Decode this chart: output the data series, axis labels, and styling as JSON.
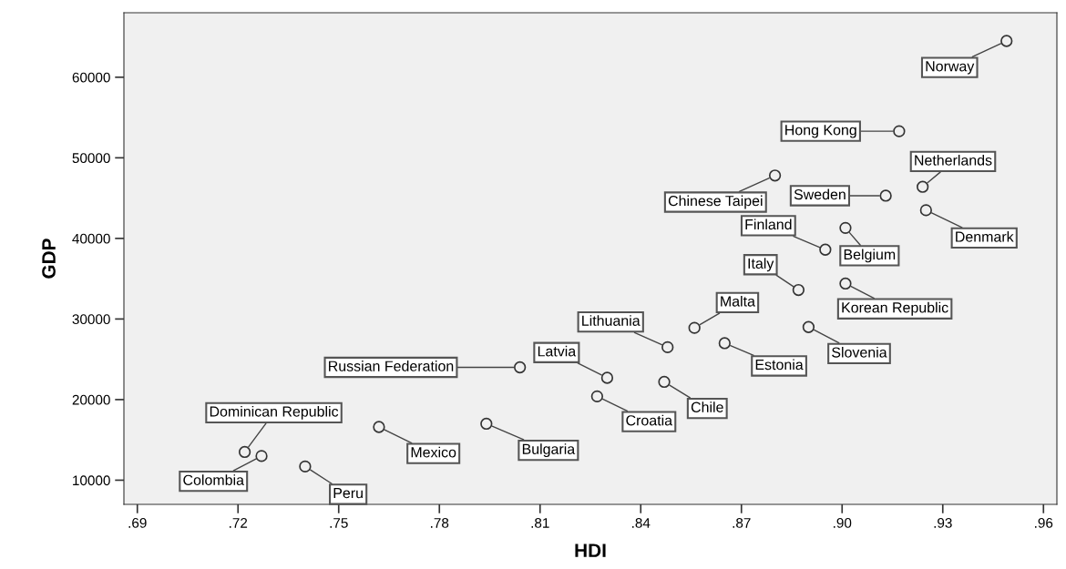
{
  "chart_data": {
    "type": "scatter",
    "xlabel": "HDI",
    "ylabel": "GDP",
    "marker": "circle",
    "grid": false,
    "xlim": [
      0.686,
      0.964
    ],
    "ylim": [
      7000,
      68000
    ],
    "xticks": [
      {
        "value": 0.69,
        "label": ".69"
      },
      {
        "value": 0.72,
        "label": ".72"
      },
      {
        "value": 0.75,
        "label": ".75"
      },
      {
        "value": 0.78,
        "label": ".78"
      },
      {
        "value": 0.81,
        "label": ".81"
      },
      {
        "value": 0.84,
        "label": ".84"
      },
      {
        "value": 0.87,
        "label": ".87"
      },
      {
        "value": 0.9,
        "label": ".90"
      },
      {
        "value": 0.93,
        "label": ".93"
      },
      {
        "value": 0.96,
        "label": ".96"
      }
    ],
    "yticks": [
      10000,
      20000,
      30000,
      40000,
      50000,
      60000
    ],
    "series": [
      {
        "color": "#333333",
        "x": [
          0.949,
          0.917,
          0.88,
          0.913,
          0.924,
          0.925,
          0.895,
          0.901,
          0.887,
          0.901,
          0.856,
          0.848,
          0.865,
          0.89,
          0.83,
          0.827,
          0.847,
          0.804,
          0.722,
          0.727,
          0.762,
          0.794,
          0.74
        ],
        "values": [
          64500,
          53300,
          47800,
          45300,
          46400,
          43500,
          38600,
          41300,
          33600,
          34400,
          28900,
          26500,
          27000,
          29000,
          22700,
          20400,
          22200,
          24000,
          13500,
          13000,
          16600,
          17000,
          11700
        ]
      }
    ],
    "annotations": [
      {
        "text": "Norway",
        "x": 0.949,
        "y": 64500
      },
      {
        "text": "Hong Kong",
        "x": 0.917,
        "y": 53300
      },
      {
        "text": "Chinese Taipei",
        "x": 0.88,
        "y": 47800
      },
      {
        "text": "Sweden",
        "x": 0.913,
        "y": 45300
      },
      {
        "text": "Netherlands",
        "x": 0.924,
        "y": 46400
      },
      {
        "text": "Denmark",
        "x": 0.925,
        "y": 43500
      },
      {
        "text": "Finland",
        "x": 0.895,
        "y": 38600
      },
      {
        "text": "Belgium",
        "x": 0.901,
        "y": 41300
      },
      {
        "text": "Italy",
        "x": 0.887,
        "y": 33600
      },
      {
        "text": "Korean Republic",
        "x": 0.901,
        "y": 34400
      },
      {
        "text": "Malta",
        "x": 0.856,
        "y": 28900
      },
      {
        "text": "Lithuania",
        "x": 0.848,
        "y": 26500
      },
      {
        "text": "Estonia",
        "x": 0.865,
        "y": 27000
      },
      {
        "text": "Slovenia",
        "x": 0.89,
        "y": 29000
      },
      {
        "text": "Latvia",
        "x": 0.83,
        "y": 22700
      },
      {
        "text": "Croatia",
        "x": 0.827,
        "y": 20400
      },
      {
        "text": "Chile",
        "x": 0.847,
        "y": 22200
      },
      {
        "text": "Russian Federation",
        "x": 0.804,
        "y": 24000
      },
      {
        "text": "Dominican Republic",
        "x": 0.722,
        "y": 13500
      },
      {
        "text": "Colombia",
        "x": 0.727,
        "y": 13000
      },
      {
        "text": "Mexico",
        "x": 0.762,
        "y": 16600
      },
      {
        "text": "Bulgaria",
        "x": 0.794,
        "y": 17000
      },
      {
        "text": "Peru",
        "x": 0.74,
        "y": 11700
      }
    ]
  }
}
